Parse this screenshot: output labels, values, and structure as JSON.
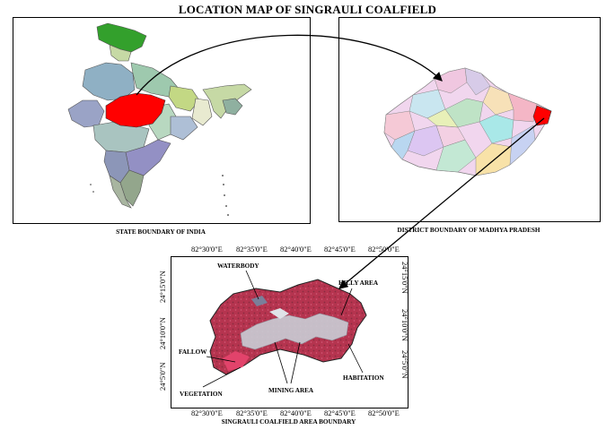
{
  "title": "LOCATION MAP OF SINGRAULI COALFIELD",
  "captions": {
    "india": "STATE BOUNDARY OF INDIA",
    "mp": "DISTRICT BOUNDARY OF MADHYA PRADESH",
    "singrauli": "SINGRAULI COALFIELD AREA BOUNDARY"
  },
  "coords": {
    "lon": [
      "82°30'0\"E",
      "82°35'0\"E",
      "82°40'0\"E",
      "82°45'0\"E",
      "82°50'0\"E"
    ],
    "lat": [
      "24°15'0\"N",
      "24°10'0\"N",
      "24°5'0\"N"
    ]
  },
  "labels": {
    "waterbody": "WATERBODY",
    "hilly": "HILLY AREA",
    "fallow": "FALLOW",
    "habitation": "HABITATION",
    "vegetation": "VEGETATION",
    "mining": "MINING AREA"
  },
  "colors": {
    "highlight": "#ff0000",
    "jammu_kashmir": "#33a02c",
    "satellite_red": "#b5344f",
    "mining_gray": "#c9ced6"
  }
}
